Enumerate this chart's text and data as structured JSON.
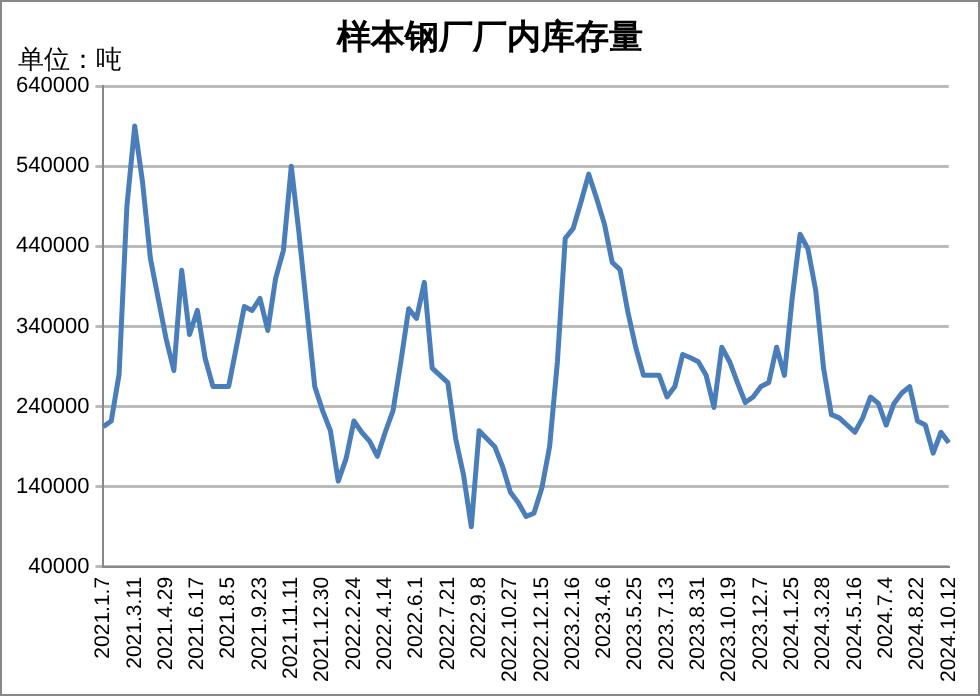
{
  "chart_data": {
    "type": "line",
    "title": "样本钢厂厂内库存量",
    "ylabel": "单位：吨",
    "categories": [
      "2021.1.7",
      null,
      null,
      null,
      "2021.3.11",
      null,
      null,
      null,
      "2021.4.29",
      null,
      null,
      null,
      "2021.6.17",
      null,
      null,
      null,
      "2021.8.5",
      null,
      null,
      null,
      "2021.9.23",
      null,
      null,
      null,
      "2021.11.11",
      null,
      null,
      null,
      "2021.12.30",
      null,
      null,
      null,
      "2022.2.24",
      null,
      null,
      null,
      "2022.4.14",
      null,
      null,
      null,
      "2022.6.1",
      null,
      null,
      null,
      "2022.7.21",
      null,
      null,
      null,
      "2022.9.8",
      null,
      null,
      null,
      "2022.10.27",
      null,
      null,
      null,
      "2022.12.15",
      null,
      null,
      null,
      "2023.2.16",
      null,
      null,
      null,
      "2023.4.6",
      null,
      null,
      null,
      "2023.5.25",
      null,
      null,
      null,
      "2023.7.13",
      null,
      null,
      null,
      "2023.8.31",
      null,
      null,
      null,
      "2023.10.19",
      null,
      null,
      null,
      "2023.12.7",
      null,
      null,
      null,
      "2024.1.25",
      null,
      null,
      null,
      "2024.3.28",
      null,
      null,
      null,
      "2024.5.16",
      null,
      null,
      null,
      "2024.7.4",
      null,
      null,
      null,
      "2024.8.22",
      null,
      null,
      null,
      "2024.10.12"
    ],
    "series": [
      {
        "color": "#4a7ebb",
        "values": [
          215000,
          222000,
          280000,
          490000,
          590000,
          520000,
          425000,
          375000,
          325000,
          285000,
          410000,
          330000,
          360000,
          300000,
          265000,
          265000,
          265000,
          315000,
          365000,
          360000,
          375000,
          335000,
          400000,
          435000,
          540000,
          455000,
          360000,
          265000,
          235000,
          210000,
          147000,
          175000,
          222000,
          208000,
          197000,
          178000,
          208000,
          235000,
          296000,
          362000,
          350000,
          395000,
          288000,
          279000,
          270000,
          200000,
          155000,
          90000,
          210000,
          200000,
          190000,
          165000,
          133000,
          120000,
          103000,
          107000,
          138000,
          190000,
          296000,
          450000,
          462000,
          495000,
          530000,
          500000,
          468000,
          420000,
          411000,
          358000,
          314000,
          279000,
          279000,
          279000,
          252000,
          265000,
          305000,
          301000,
          296000,
          279000,
          239000,
          314000,
          296000,
          270000,
          245000,
          252000,
          265000,
          270000,
          314000,
          279000,
          376000,
          455000,
          437000,
          385000,
          288000,
          230000,
          226000,
          217000,
          208000,
          226000,
          252000,
          244000,
          217000,
          244000,
          257000,
          265000,
          222000,
          217000,
          182000,
          208000,
          195000
        ]
      }
    ],
    "ylim": [
      40000,
      640000
    ],
    "yticks": [
      40000,
      140000,
      240000,
      340000,
      440000,
      540000,
      640000
    ],
    "grid": "y",
    "legend": false,
    "marker": "none",
    "line_style": "solid"
  }
}
